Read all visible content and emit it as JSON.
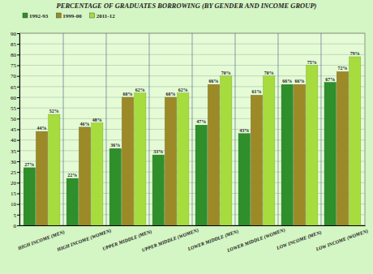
{
  "chart_data": {
    "type": "bar",
    "title": "PERCENTAGE OF GRADUATES BORROWING (BY GENDER AND INCOME GROUP)",
    "categories": [
      "HIGH INCOME (MEN)",
      "HIGH INCOME (WOMEN)",
      "UPPER MIDDLE (MEN)",
      "UPPER MIDDLE (WOMEN)",
      "LOWER MIDDLE (MEN)",
      "LOWER MIDDLE (WOMEN)",
      "LOW INCOME (MEN)",
      "LOW INCOME (WOMEN)"
    ],
    "series": [
      {
        "name": "1992-93",
        "color": "#2f8f2a",
        "values": [
          27,
          22,
          36,
          33,
          47,
          43,
          66,
          67
        ],
        "value_labels": [
          "27%",
          "22%",
          "36%",
          "33%",
          "47%",
          "43%",
          "66%",
          "67%"
        ]
      },
      {
        "name": "1999-00",
        "color": "#9c8a28",
        "values": [
          44,
          46,
          60,
          60,
          66,
          61,
          66,
          72
        ],
        "value_labels": [
          "44%",
          "46%",
          "60%",
          "60%",
          "66%",
          "61%",
          "66%",
          "72%"
        ]
      },
      {
        "name": "2011-12",
        "color": "#a6dc3e",
        "values": [
          52,
          48,
          62,
          62,
          70,
          70,
          75,
          79
        ],
        "value_labels": [
          "52%",
          "48%",
          "62%",
          "62%",
          "70%",
          "70%",
          "75%",
          "79%"
        ]
      }
    ],
    "ylim": [
      0,
      90
    ],
    "yticks": [
      0,
      5,
      10,
      15,
      20,
      25,
      30,
      35,
      40,
      45,
      50,
      55,
      60,
      65,
      70,
      75,
      80,
      85,
      90
    ],
    "grid": true,
    "legend": "top-left",
    "data_labels": true
  }
}
